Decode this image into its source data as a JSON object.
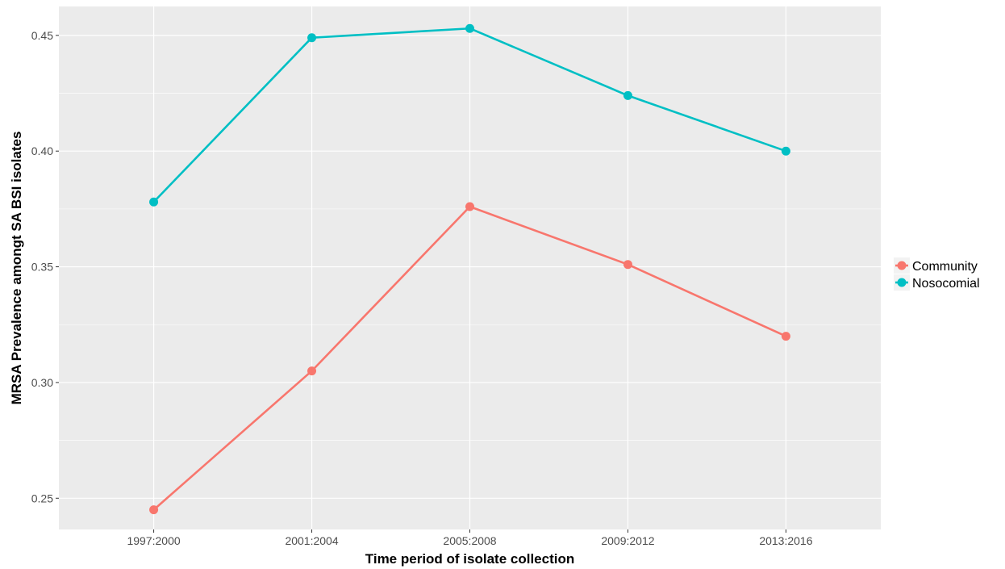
{
  "chart_data": {
    "type": "line",
    "title": "",
    "xlabel": "Time period of isolate collection",
    "ylabel": "MRSA Prevalence amongt SA BSI isolates",
    "categories": [
      "1997:2000",
      "2001:2004",
      "2005:2008",
      "2009:2012",
      "2013:2016"
    ],
    "series": [
      {
        "name": "Community",
        "color": "#F8766D",
        "values": [
          0.245,
          0.305,
          0.376,
          0.351,
          0.32
        ]
      },
      {
        "name": "Nosocomial",
        "color": "#00BFC4",
        "values": [
          0.378,
          0.449,
          0.453,
          0.424,
          0.4
        ]
      }
    ],
    "ylim": [
      0.2365,
      0.4625
    ],
    "yticks": [
      0.25,
      0.3,
      0.35,
      0.4,
      0.45
    ],
    "ytick_labels": [
      "0.25",
      "0.30",
      "0.35",
      "0.40",
      "0.45"
    ],
    "grid": true,
    "panel_background": "#EBEBEB",
    "grid_color": "#FFFFFF",
    "legend_position": "right"
  }
}
